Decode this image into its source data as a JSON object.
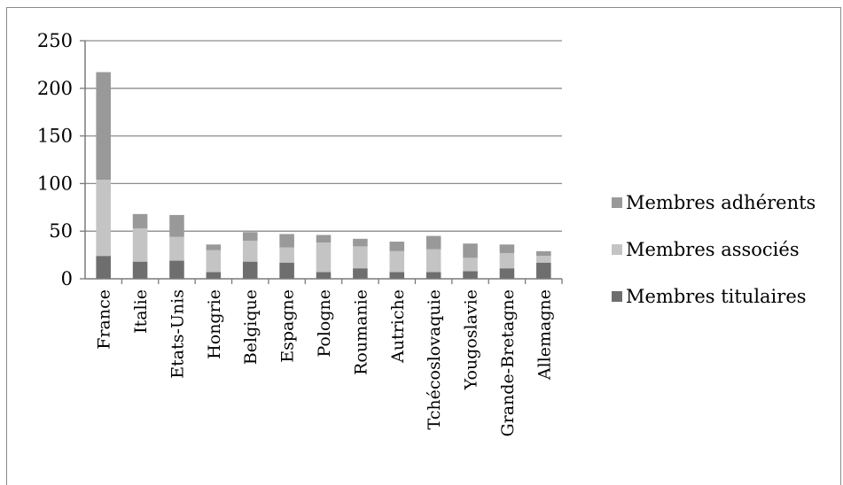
{
  "chart_data": {
    "type": "bar",
    "stacked": true,
    "categories": [
      "France",
      "Italie",
      "Etats-Unis",
      "Hongrie",
      "Belgique",
      "Espagne",
      "Pologne",
      "Roumanie",
      "Autriche",
      "Tchécoslovaquie",
      "Yougoslavie",
      "Grande-Bretagne",
      "Allemagne"
    ],
    "series": [
      {
        "name": "Membres titulaires",
        "values": [
          24,
          18,
          19,
          7,
          18,
          17,
          7,
          11,
          7,
          7,
          8,
          11,
          17
        ]
      },
      {
        "name": "Membres associés",
        "values": [
          80,
          35,
          25,
          23,
          22,
          16,
          31,
          23,
          22,
          24,
          14,
          16,
          7
        ]
      },
      {
        "name": "Membres adhérents",
        "values": [
          113,
          15,
          23,
          6,
          9,
          14,
          8,
          8,
          10,
          14,
          15,
          9,
          5
        ]
      }
    ],
    "ylim": [
      0,
      250
    ],
    "yticks": [
      0,
      50,
      100,
      150,
      200,
      250
    ],
    "grid": true,
    "legend": "right",
    "colors": {
      "Membres titulaires": "#6e6e6e",
      "Membres associés": "#c4c4c4",
      "Membres adhérents": "#999999",
      "gridline": "#8c8c8c",
      "axis": "#7a7a7a"
    }
  }
}
